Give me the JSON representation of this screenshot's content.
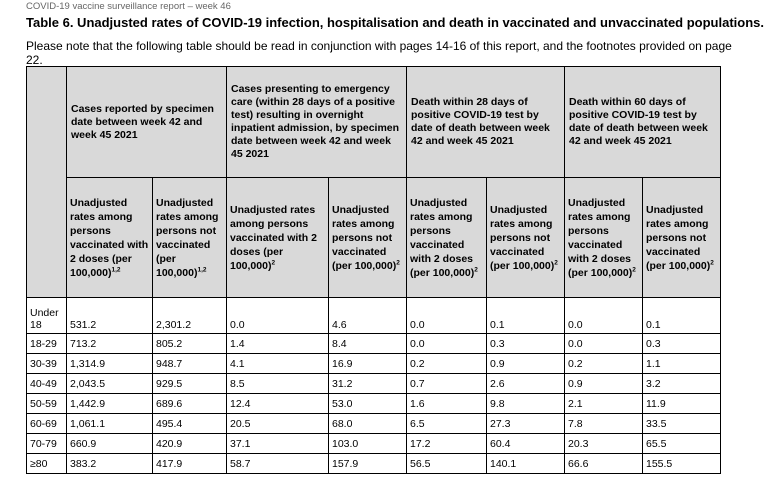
{
  "running_header": "COVID-19 vaccine surveillance report – week 46",
  "title": "Table 6. Unadjusted rates of COVID-19 infection, hospitalisation and death in vaccinated and unvaccinated populations.",
  "note": "Please note that the following table should be read in conjunction with pages 14-16 of this report, and the footnotes provided on page 22.",
  "groups": [
    "Cases reported by specimen date between week 42 and week 45 2021",
    "Cases presenting to emergency care (within 28 days of a positive test) resulting in overnight inpatient admission, by specimen date between week 42 and week 45 2021",
    "Death within 28 days of positive COVID-19 test by date of death between week 42 and week 45 2021",
    "Death within 60 days of positive COVID-19 test by date of death between week 42 and week 45 2021"
  ],
  "subheaders": [
    {
      "text": "Unadjusted rates among persons vaccinated with 2 doses (per 100,000)",
      "sup": "1,2"
    },
    {
      "text": "Unadjusted rates among persons not vaccinated (per 100,000)",
      "sup": "1,2"
    },
    {
      "text": "Unadjusted rates among persons vaccinated with 2 doses (per 100,000)",
      "sup": "2"
    },
    {
      "text": "Unadjusted rates among persons not vaccinated (per 100,000)",
      "sup": "2"
    },
    {
      "text": "Unadjusted rates among persons vaccinated with 2 doses (per 100,000)",
      "sup": "2"
    },
    {
      "text": "Unadjusted rates among persons not vaccinated (per 100,000)",
      "sup": "2"
    },
    {
      "text": "Unadjusted rates among persons vaccinated with 2 doses (per 100,000)",
      "sup": "2"
    },
    {
      "text": "Unadjusted rates among persons not vaccinated (per 100,000)",
      "sup": "2"
    }
  ],
  "rows": [
    {
      "age": "Under 18",
      "values": [
        "531.2",
        "2,301.2",
        "0.0",
        "4.6",
        "0.0",
        "0.1",
        "0.0",
        "0.1"
      ]
    },
    {
      "age": "18-29",
      "values": [
        "713.2",
        "805.2",
        "1.4",
        "8.4",
        "0.0",
        "0.3",
        "0.0",
        "0.3"
      ]
    },
    {
      "age": "30-39",
      "values": [
        "1,314.9",
        "948.7",
        "4.1",
        "16.9",
        "0.2",
        "0.9",
        "0.2",
        "1.1"
      ]
    },
    {
      "age": "40-49",
      "values": [
        "2,043.5",
        "929.5",
        "8.5",
        "31.2",
        "0.7",
        "2.6",
        "0.9",
        "3.2"
      ]
    },
    {
      "age": "50-59",
      "values": [
        "1,442.9",
        "689.6",
        "12.4",
        "53.0",
        "1.6",
        "9.8",
        "2.1",
        "11.9"
      ]
    },
    {
      "age": "60-69",
      "values": [
        "1,061.1",
        "495.4",
        "20.5",
        "68.0",
        "6.5",
        "27.3",
        "7.8",
        "33.5"
      ]
    },
    {
      "age": "70-79",
      "values": [
        "660.9",
        "420.9",
        "37.1",
        "103.0",
        "17.2",
        "60.4",
        "20.3",
        "65.5"
      ]
    },
    {
      "age": "≥80",
      "values": [
        "383.2",
        "417.9",
        "58.7",
        "157.9",
        "56.5",
        "140.1",
        "66.6",
        "155.5"
      ]
    }
  ]
}
